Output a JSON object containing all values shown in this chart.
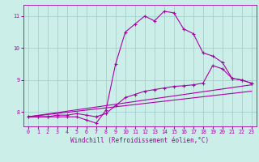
{
  "x_ticks": [
    0,
    1,
    2,
    3,
    4,
    5,
    6,
    7,
    8,
    9,
    10,
    11,
    12,
    13,
    14,
    15,
    16,
    17,
    18,
    19,
    20,
    21,
    22,
    23
  ],
  "xlim": [
    -0.5,
    23.5
  ],
  "ylim": [
    7.55,
    11.35
  ],
  "y_ticks": [
    8,
    9,
    10,
    11
  ],
  "xlabel": "Windchill (Refroidissement éolien,°C)",
  "background_color": "#cceee8",
  "grid_color": "#99cccc",
  "line_color": "#aa00aa",
  "line1_x": [
    0,
    1,
    2,
    3,
    4,
    5,
    6,
    7,
    8,
    9,
    10,
    11,
    12,
    13,
    14,
    15,
    16,
    17,
    18,
    19,
    20,
    21,
    22,
    23
  ],
  "line1_y": [
    7.85,
    7.85,
    7.85,
    7.85,
    7.85,
    7.85,
    7.75,
    7.65,
    8.05,
    9.5,
    10.5,
    10.75,
    11.0,
    10.85,
    11.15,
    11.1,
    10.6,
    10.45,
    9.85,
    9.75,
    9.55,
    9.05,
    9.0,
    8.9
  ],
  "line2_x": [
    0,
    1,
    2,
    3,
    4,
    5,
    6,
    7,
    8,
    9,
    10,
    11,
    12,
    13,
    14,
    15,
    16,
    17,
    18,
    19,
    20,
    21,
    22,
    23
  ],
  "line2_y": [
    7.85,
    7.85,
    7.85,
    7.9,
    7.9,
    7.95,
    7.9,
    7.85,
    7.95,
    8.2,
    8.45,
    8.55,
    8.65,
    8.7,
    8.75,
    8.8,
    8.82,
    8.85,
    8.9,
    9.45,
    9.35,
    9.05,
    9.0,
    8.9
  ],
  "line3_x": [
    0,
    23
  ],
  "line3_y": [
    7.85,
    8.85
  ],
  "line4_x": [
    0,
    23
  ],
  "line4_y": [
    7.85,
    8.65
  ]
}
